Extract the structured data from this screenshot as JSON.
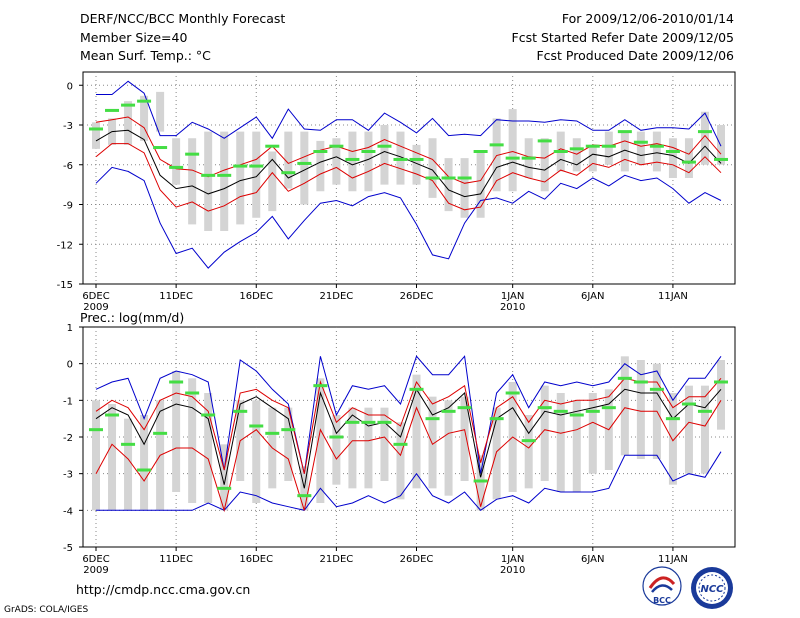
{
  "header": {
    "title": "DERF/NCC/BCC Monthly Forecast",
    "member_size": "Member Size=40",
    "variable_top": "Mean Surf. Temp.: °C",
    "forecast_period": "For 2009/12/06-2010/01/14",
    "started_refer": "Fcst Started Refer Date 2009/12/05",
    "produced": "Fcst Produced Date 2009/12/06"
  },
  "footer": {
    "url": "http://cmdp.ncc.cma.gov.cn",
    "credit": "GrADS: COLA/IGES",
    "logo_left_text": "BCC",
    "logo_right_text": "NCC"
  },
  "colors": {
    "box": "#d4d4d4",
    "median": "#44dd44",
    "mean": "#000000",
    "std": "#dd0000",
    "extreme": "#0000cc",
    "grid": "#888888"
  },
  "chart_data": [
    {
      "type": "box-line",
      "title": "Mean Surf. Temp.: °C",
      "ylabel": "°C",
      "ylim": [
        -15,
        1
      ],
      "yticks": [
        0,
        -3,
        -6,
        -9,
        -12,
        -15
      ],
      "xlim": [
        0,
        39
      ],
      "xticks": [
        {
          "day": 0,
          "label": "6DEC",
          "sub": "2009"
        },
        {
          "day": 5,
          "label": "11DEC",
          "sub": ""
        },
        {
          "day": 10,
          "label": "16DEC",
          "sub": ""
        },
        {
          "day": 15,
          "label": "21DEC",
          "sub": ""
        },
        {
          "day": 20,
          "label": "26DEC",
          "sub": ""
        },
        {
          "day": 26,
          "label": "1JAN",
          "sub": "2010"
        },
        {
          "day": 31,
          "label": "6JAN",
          "sub": ""
        },
        {
          "day": 36,
          "label": "11JAN",
          "sub": ""
        }
      ],
      "box_top": [
        -2.8,
        -2.5,
        -1.2,
        -0.8,
        -0.5,
        -4.0,
        -4.0,
        -3.5,
        -3.5,
        -3.5,
        -3.5,
        -5.0,
        -3.5,
        -3.5,
        -4.2,
        -4.0,
        -3.5,
        -3.5,
        -3.0,
        -3.5,
        -4.5,
        -4.0,
        -5.5,
        -5.5,
        -5.0,
        -2.5,
        -1.8,
        -4.0,
        -4.0,
        -3.5,
        -4.0,
        -4.5,
        -3.5,
        -3.5,
        -3.5,
        -3.5,
        -4.0,
        -4.0,
        -2.0,
        -3.0
      ],
      "box_bottom": [
        -4.8,
        -4.5,
        -4.5,
        -4.2,
        -3.5,
        -7.5,
        -10.5,
        -11.0,
        -11.0,
        -10.5,
        -10.0,
        -9.5,
        -7.8,
        -9.0,
        -8.0,
        -7.5,
        -8.0,
        -8.0,
        -7.5,
        -7.5,
        -7.5,
        -8.5,
        -9.5,
        -10.0,
        -10.0,
        -8.0,
        -8.0,
        -7.0,
        -8.0,
        -6.5,
        -6.5,
        -6.5,
        -6.0,
        -6.5,
        -6.0,
        -6.5,
        -7.0,
        -7.0,
        -6.0,
        -6.0
      ],
      "median": [
        -3.3,
        -1.9,
        -1.5,
        -1.2,
        -4.7,
        -6.2,
        -5.2,
        -6.8,
        -6.8,
        -6.1,
        -6.1,
        -4.6,
        -6.6,
        -5.9,
        -5.0,
        -4.6,
        -5.6,
        -5.0,
        -4.6,
        -5.6,
        -5.6,
        -7.0,
        -7.0,
        -7.0,
        -5.0,
        -4.5,
        -5.5,
        -5.5,
        -4.2,
        -5.0,
        -4.8,
        -4.6,
        -4.6,
        -3.5,
        -4.3,
        -4.6,
        -5.0,
        -5.8,
        -3.5,
        -5.6
      ],
      "mean": [
        -4.2,
        -3.5,
        -3.4,
        -4.1,
        -6.8,
        -7.8,
        -7.6,
        -8.2,
        -7.8,
        -7.2,
        -6.9,
        -5.6,
        -7.0,
        -6.4,
        -5.8,
        -5.4,
        -6.0,
        -5.6,
        -5.0,
        -5.4,
        -5.9,
        -6.4,
        -7.9,
        -8.4,
        -8.2,
        -6.2,
        -5.8,
        -6.2,
        -6.4,
        -5.6,
        -6.0,
        -5.2,
        -5.4,
        -4.9,
        -5.3,
        -5.1,
        -5.3,
        -5.9,
        -4.6,
        -5.9
      ],
      "std_upper": [
        -2.8,
        -2.6,
        -2.4,
        -3.2,
        -5.6,
        -6.3,
        -6.4,
        -6.9,
        -6.4,
        -6.0,
        -5.6,
        -4.6,
        -5.9,
        -5.4,
        -4.9,
        -4.6,
        -5.0,
        -4.7,
        -4.1,
        -4.6,
        -5.1,
        -5.6,
        -6.9,
        -7.4,
        -7.2,
        -5.3,
        -5.0,
        -5.4,
        -5.5,
        -4.8,
        -5.2,
        -4.5,
        -4.6,
        -4.2,
        -4.6,
        -4.4,
        -4.7,
        -5.2,
        -3.8,
        -5.2
      ],
      "std_lower": [
        -5.4,
        -4.4,
        -4.4,
        -5.1,
        -7.9,
        -9.2,
        -8.8,
        -9.5,
        -9.1,
        -8.4,
        -8.1,
        -6.6,
        -8.0,
        -7.4,
        -6.7,
        -6.2,
        -7.0,
        -6.5,
        -5.9,
        -6.3,
        -6.7,
        -7.2,
        -8.9,
        -9.4,
        -9.2,
        -7.2,
        -6.6,
        -7.0,
        -7.3,
        -6.4,
        -6.8,
        -5.9,
        -6.2,
        -5.6,
        -6.0,
        -5.8,
        -6.0,
        -6.6,
        -5.4,
        -6.6
      ],
      "max": [
        -0.7,
        -0.7,
        0.3,
        -0.6,
        -3.8,
        -3.8,
        -2.8,
        -3.3,
        -4.0,
        -3.2,
        -2.4,
        -4.0,
        -1.8,
        -3.3,
        -3.4,
        -2.6,
        -2.6,
        -3.4,
        -2.1,
        -2.8,
        -3.6,
        -2.5,
        -3.8,
        -3.7,
        -3.8,
        -2.6,
        -2.7,
        -2.7,
        -2.8,
        -2.6,
        -2.7,
        -3.4,
        -3.4,
        -2.6,
        -3.4,
        -3.2,
        -3.2,
        -3.3,
        -2.1,
        -4.6
      ],
      "min": [
        -7.4,
        -6.2,
        -6.5,
        -7.2,
        -10.4,
        -12.7,
        -12.3,
        -13.8,
        -12.6,
        -11.8,
        -11.1,
        -9.9,
        -11.6,
        -10.2,
        -8.9,
        -8.7,
        -9.1,
        -8.4,
        -8.1,
        -8.5,
        -10.5,
        -12.8,
        -13.1,
        -10.4,
        -8.7,
        -8.5,
        -8.9,
        -8.0,
        -8.6,
        -7.4,
        -7.8,
        -7.0,
        -7.6,
        -6.8,
        -7.2,
        -7.0,
        -7.8,
        -8.9,
        -8.1,
        -8.7
      ]
    },
    {
      "type": "box-line",
      "title": "Prec.: log(mm/d)",
      "ylabel": "log(mm/d)",
      "ylim": [
        -5,
        1
      ],
      "yticks": [
        1,
        0,
        -1,
        -2,
        -3,
        -4,
        -5
      ],
      "xlim": [
        0,
        39
      ],
      "xticks": [
        {
          "day": 0,
          "label": "6DEC",
          "sub": "2009"
        },
        {
          "day": 5,
          "label": "11DEC",
          "sub": ""
        },
        {
          "day": 10,
          "label": "16DEC",
          "sub": ""
        },
        {
          "day": 15,
          "label": "21DEC",
          "sub": ""
        },
        {
          "day": 20,
          "label": "26DEC",
          "sub": ""
        },
        {
          "day": 26,
          "label": "1JAN",
          "sub": "2010"
        },
        {
          "day": 31,
          "label": "6JAN",
          "sub": ""
        },
        {
          "day": 36,
          "label": "11JAN",
          "sub": ""
        }
      ],
      "box_top": [
        -1.0,
        -1.1,
        -1.5,
        -1.4,
        -1.0,
        -0.2,
        -0.4,
        -0.8,
        -2.2,
        -1.0,
        -1.0,
        -1.2,
        -1.2,
        -2.8,
        -0.4,
        -1.4,
        -1.2,
        -1.2,
        -1.2,
        -1.6,
        -0.3,
        -0.9,
        -1.0,
        -0.9,
        -2.5,
        -1.2,
        -0.5,
        -1.4,
        -0.6,
        -0.8,
        -1.0,
        -0.8,
        -0.7,
        0.2,
        0.1,
        0.0,
        -0.8,
        -0.6,
        -0.6,
        0.1
      ],
      "box_bottom": [
        -4.0,
        -4.0,
        -4.0,
        -4.0,
        -4.0,
        -3.5,
        -3.8,
        -3.8,
        -4.0,
        -3.2,
        -3.8,
        -3.4,
        -3.2,
        -4.0,
        -3.8,
        -3.3,
        -3.4,
        -3.4,
        -3.2,
        -3.7,
        -3.4,
        -3.4,
        -3.6,
        -3.2,
        -4.0,
        -3.7,
        -3.5,
        -3.4,
        -3.2,
        -3.5,
        -3.5,
        -3.0,
        -2.9,
        -2.5,
        -2.6,
        -2.6,
        -3.3,
        -3.0,
        -3.0,
        -1.8
      ],
      "median": [
        -1.8,
        -1.4,
        -2.2,
        -2.9,
        -1.9,
        -0.5,
        -0.8,
        -1.4,
        -3.4,
        -1.3,
        -1.7,
        -1.9,
        -1.8,
        -3.6,
        -0.6,
        -2.0,
        -1.6,
        -1.6,
        -1.6,
        -2.2,
        -0.7,
        -1.5,
        -1.3,
        -1.2,
        -3.2,
        -1.5,
        -0.8,
        -2.1,
        -1.2,
        -1.3,
        -1.4,
        -1.3,
        -1.2,
        -0.4,
        -0.5,
        -0.7,
        -1.5,
        -1.1,
        -1.3,
        -0.5
      ],
      "mean": [
        -1.5,
        -1.2,
        -1.4,
        -2.2,
        -1.3,
        -1.1,
        -1.2,
        -1.5,
        -3.3,
        -1.1,
        -0.9,
        -1.2,
        -1.5,
        -3.4,
        -0.8,
        -1.9,
        -1.4,
        -1.7,
        -1.6,
        -2.0,
        -0.7,
        -1.4,
        -1.2,
        -0.8,
        -3.1,
        -1.5,
        -1.2,
        -1.9,
        -1.3,
        -1.4,
        -1.3,
        -1.2,
        -1.1,
        -0.7,
        -0.8,
        -0.8,
        -1.5,
        -1.1,
        -1.2,
        -0.7
      ],
      "std_upper": [
        -1.3,
        -1.0,
        -1.2,
        -1.8,
        -1.0,
        -0.8,
        -0.9,
        -1.3,
        -2.9,
        -0.8,
        -0.7,
        -1.0,
        -1.2,
        -3.0,
        -0.5,
        -1.6,
        -1.2,
        -1.4,
        -1.4,
        -1.7,
        -0.5,
        -1.1,
        -0.9,
        -0.6,
        -2.7,
        -1.2,
        -0.9,
        -1.6,
        -1.0,
        -1.1,
        -1.0,
        -1.0,
        -0.9,
        -0.4,
        -0.5,
        -0.5,
        -1.2,
        -0.9,
        -0.9,
        -0.4
      ],
      "std_lower": [
        -3.0,
        -2.2,
        -2.6,
        -3.2,
        -2.5,
        -2.3,
        -2.3,
        -2.6,
        -4.0,
        -2.1,
        -1.8,
        -2.3,
        -2.6,
        -4.0,
        -1.8,
        -2.6,
        -2.1,
        -2.1,
        -2.0,
        -2.5,
        -1.2,
        -2.2,
        -1.9,
        -1.8,
        -3.9,
        -2.4,
        -2.0,
        -2.3,
        -1.8,
        -1.9,
        -1.8,
        -1.6,
        -1.8,
        -1.2,
        -1.3,
        -1.3,
        -2.1,
        -1.6,
        -1.7,
        -1.0
      ],
      "max": [
        -0.7,
        -0.5,
        -0.4,
        -1.5,
        -0.4,
        -0.2,
        -0.3,
        -0.5,
        -2.9,
        0.1,
        -0.2,
        -0.7,
        -1.1,
        -3.0,
        0.2,
        -1.4,
        -0.6,
        -0.7,
        -0.6,
        -1.1,
        0.2,
        -0.3,
        -0.3,
        0.2,
        -3.0,
        -0.8,
        -0.3,
        -1.2,
        -0.5,
        -0.6,
        -0.5,
        -0.6,
        -0.5,
        0.0,
        -0.3,
        -0.2,
        -1.0,
        -0.4,
        -0.4,
        0.2
      ],
      "min": [
        -4.0,
        -4.0,
        -4.0,
        -4.0,
        -4.0,
        -4.0,
        -4.0,
        -3.8,
        -4.0,
        -3.5,
        -3.6,
        -3.8,
        -3.9,
        -4.0,
        -3.4,
        -3.9,
        -3.8,
        -3.6,
        -3.8,
        -3.6,
        -3.0,
        -3.6,
        -3.8,
        -3.5,
        -4.0,
        -3.7,
        -3.6,
        -3.8,
        -3.4,
        -3.5,
        -3.5,
        -3.5,
        -3.4,
        -2.5,
        -2.5,
        -2.5,
        -3.2,
        -3.0,
        -3.1,
        -2.4
      ]
    }
  ]
}
